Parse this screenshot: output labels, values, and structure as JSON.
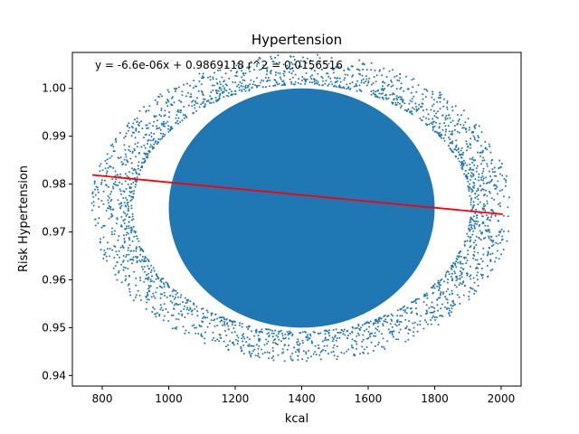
{
  "chart_data": {
    "type": "scatter",
    "title": "Hypertension",
    "xlabel": "kcal",
    "ylabel": "Risk Hypertension",
    "xlim": [
      710,
      2060
    ],
    "ylim": [
      0.9378,
      1.0075
    ],
    "xticks": [
      800,
      1000,
      1200,
      1400,
      1600,
      1800,
      2000
    ],
    "xtick_labels": [
      "800",
      "1000",
      "1200",
      "1400",
      "1600",
      "1800",
      "2000"
    ],
    "yticks": [
      0.94,
      0.95,
      0.96,
      0.97,
      0.98,
      0.99,
      1.0
    ],
    "ytick_labels": [
      "0.94",
      "0.95",
      "0.96",
      "0.97",
      "0.98",
      "0.99",
      "1.00"
    ],
    "grid": false,
    "annotation": "y = -6.6e-06x + 0.9869118  r^2 = 0.0156516",
    "scatter_color": "#1f77b4",
    "trend_color": "#ff0000",
    "cloud": {
      "center_x": 1400,
      "center_y": 0.975,
      "core_x_range": [
        1000,
        1800
      ],
      "core_y_range": [
        0.95,
        1.0
      ],
      "full_x_range": [
        770,
        2010
      ],
      "full_y_range": [
        0.94,
        1.003
      ]
    },
    "trendline": {
      "x": [
        770,
        2005
      ],
      "y": [
        0.9819,
        0.9737
      ]
    }
  }
}
